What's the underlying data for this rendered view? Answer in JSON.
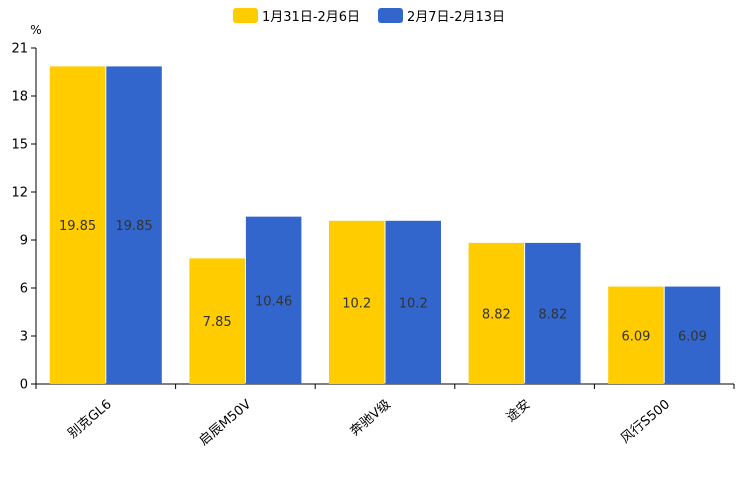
{
  "chart_data": {
    "type": "bar",
    "ylabel": "%",
    "ylim": [
      0,
      21
    ],
    "yticks": [
      0,
      3,
      6,
      9,
      12,
      15,
      18,
      21
    ],
    "categories": [
      "别克GL6",
      "启辰M50V",
      "奔驰V级",
      "途安",
      "风行S500"
    ],
    "series": [
      {
        "name": "1月31日-2月6日",
        "color": "#FFCC00",
        "values": [
          19.85,
          7.85,
          10.2,
          8.82,
          6.09
        ],
        "labels": [
          "19.85",
          "7.85",
          "10.2",
          "8.82",
          "6.09"
        ]
      },
      {
        "name": "2月7日-2月13日",
        "color": "#3366CC",
        "values": [
          19.85,
          10.46,
          10.2,
          8.82,
          6.09
        ],
        "labels": [
          "19.85",
          "10.46",
          "10.2",
          "8.82",
          "6.09"
        ]
      }
    ],
    "grid": false,
    "legend": "top-center"
  }
}
